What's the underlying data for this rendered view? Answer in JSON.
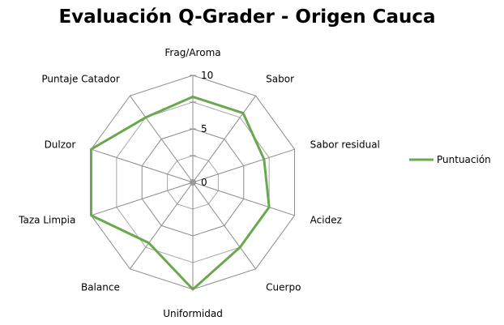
{
  "chart_data": {
    "type": "radar",
    "title": "Evaluación Q-Grader - Origen Cauca",
    "axes": [
      "Frag/Aroma",
      "Sabor",
      "Sabor residual",
      "Acidez",
      "Cuerpo",
      "Uniformidad",
      "Balance",
      "Taza Limpia",
      "Dulzor",
      "Puntaje Catador"
    ],
    "series": [
      {
        "name": "Puntuación",
        "color": "#6aa84f",
        "values": [
          8,
          8,
          7,
          7.5,
          7.5,
          10,
          7,
          10,
          10,
          7.5
        ]
      }
    ],
    "rmin": 0,
    "rmax": 10,
    "ticks": [
      "0",
      "5",
      "10"
    ],
    "tick_values": [
      0,
      5,
      10
    ],
    "minor_step": 2.5,
    "legend": "right",
    "grid": true
  }
}
